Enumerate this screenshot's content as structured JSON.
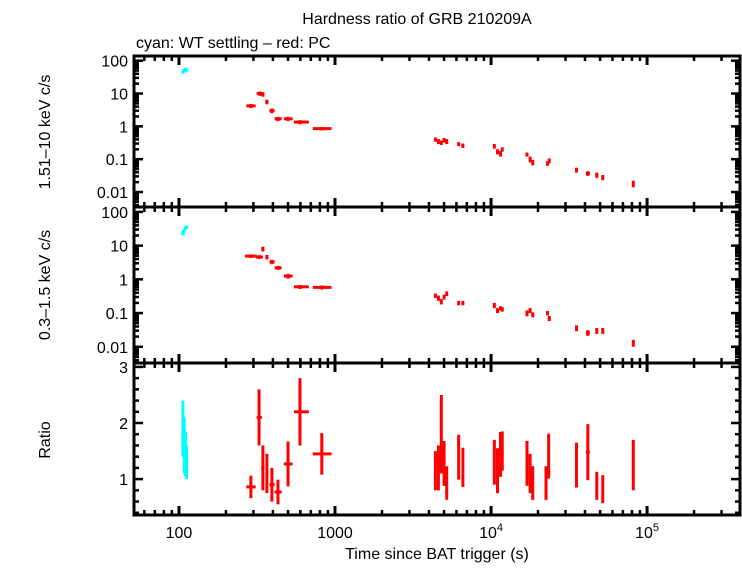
{
  "chart_data": {
    "type": "scatter",
    "title": "Hardness ratio of GRB 210209A",
    "subtitle": "cyan: WT settling – red: PC",
    "xlabel": "Time since BAT trigger (s)",
    "xscale": "log",
    "xlim": [
      51.5,
      394000
    ],
    "xticks": [
      {
        "v": 100,
        "label": "100"
      },
      {
        "v": 1000,
        "label": "1000"
      },
      {
        "v": 10000,
        "label": "10",
        "sup": "4"
      },
      {
        "v": 100000,
        "label": "10",
        "sup": "5"
      }
    ],
    "colors": {
      "wt": "#00ffff",
      "pc": "#ff0000"
    },
    "panels": [
      {
        "id": "hard",
        "ylabel": "1.51–10 keV c/s",
        "yscale": "log",
        "ylim": [
          0.0035,
          139
        ],
        "yticks": [
          {
            "v": 100,
            "label": "100"
          },
          {
            "v": 10,
            "label": "10"
          },
          {
            "v": 1,
            "label": "1"
          },
          {
            "v": 0.1,
            "label": "0.1"
          },
          {
            "v": 0.01,
            "label": "0.01"
          }
        ],
        "wt": [
          [
            106,
            105,
            107,
            46,
            6
          ],
          [
            108,
            107,
            109,
            50,
            6
          ],
          [
            110,
            109,
            111,
            55,
            6
          ],
          [
            112,
            111,
            113,
            52,
            6
          ]
        ],
        "pc": [
          [
            289,
            270,
            310,
            4.2,
            0.6
          ],
          [
            330,
            315,
            345,
            10,
            1.5
          ],
          [
            345,
            337,
            353,
            9.5,
            1.5
          ],
          [
            366,
            358,
            374,
            5.6,
            0.9
          ],
          [
            394,
            380,
            410,
            3.0,
            0.5
          ],
          [
            431,
            410,
            455,
            1.7,
            0.25
          ],
          [
            500,
            470,
            535,
            1.7,
            0.25
          ],
          [
            596,
            545,
            680,
            1.35,
            0.2
          ],
          [
            823,
            720,
            950,
            0.85,
            0.1
          ],
          [
            4400,
            4350,
            4450,
            0.4,
            0.06
          ],
          [
            4600,
            4550,
            4650,
            0.35,
            0.06
          ],
          [
            4800,
            4750,
            4850,
            0.32,
            0.05
          ],
          [
            5000,
            4950,
            5050,
            0.38,
            0.06
          ],
          [
            5200,
            5150,
            5250,
            0.35,
            0.06
          ],
          [
            6200,
            6100,
            6300,
            0.29,
            0.04
          ],
          [
            6600,
            6500,
            6700,
            0.26,
            0.04
          ],
          [
            10500,
            10400,
            10600,
            0.25,
            0.04
          ],
          [
            11000,
            10900,
            11100,
            0.17,
            0.03
          ],
          [
            11500,
            11400,
            11600,
            0.15,
            0.03
          ],
          [
            11800,
            11700,
            11900,
            0.2,
            0.03
          ],
          [
            17000,
            16900,
            17100,
            0.14,
            0.02
          ],
          [
            17800,
            17700,
            17900,
            0.1,
            0.02
          ],
          [
            18500,
            18400,
            18600,
            0.08,
            0.015
          ],
          [
            23000,
            22800,
            23200,
            0.075,
            0.012
          ],
          [
            23600,
            23400,
            23800,
            0.09,
            0.015
          ],
          [
            35300,
            35000,
            35600,
            0.047,
            0.008
          ],
          [
            41700,
            40500,
            43000,
            0.037,
            0.006
          ],
          [
            47600,
            47200,
            48000,
            0.033,
            0.006
          ],
          [
            52000,
            51600,
            52400,
            0.028,
            0.005
          ],
          [
            81600,
            81000,
            82200,
            0.018,
            0.004
          ]
        ]
      },
      {
        "id": "soft",
        "ylabel": "0.3–1.5 keV c/s",
        "yscale": "log",
        "ylim": [
          0.0033,
          140
        ],
        "yticks": [
          {
            "v": 100,
            "label": "100"
          },
          {
            "v": 10,
            "label": "10"
          },
          {
            "v": 1,
            "label": "1"
          },
          {
            "v": 0.1,
            "label": "0.1"
          },
          {
            "v": 0.01,
            "label": "0.01"
          }
        ],
        "wt": [
          [
            106,
            105,
            107,
            24,
            4
          ],
          [
            108,
            107,
            109,
            28,
            4
          ],
          [
            110,
            109,
            111,
            33,
            4
          ],
          [
            112,
            111,
            113,
            36,
            4
          ]
        ],
        "pc": [
          [
            289,
            265,
            315,
            4.9,
            0.6
          ],
          [
            326,
            310,
            345,
            4.6,
            0.6
          ],
          [
            345,
            337,
            353,
            8,
            1.3
          ],
          [
            366,
            358,
            374,
            4.6,
            0.7
          ],
          [
            394,
            380,
            410,
            3.3,
            0.5
          ],
          [
            431,
            410,
            455,
            2.2,
            0.3
          ],
          [
            500,
            470,
            535,
            1.25,
            0.2
          ],
          [
            596,
            545,
            680,
            0.6,
            0.08
          ],
          [
            823,
            720,
            950,
            0.58,
            0.08
          ],
          [
            4400,
            4350,
            4450,
            0.33,
            0.05
          ],
          [
            4600,
            4550,
            4650,
            0.28,
            0.05
          ],
          [
            4800,
            4750,
            4850,
            0.22,
            0.04
          ],
          [
            5000,
            4950,
            5050,
            0.3,
            0.05
          ],
          [
            5200,
            5150,
            5250,
            0.38,
            0.06
          ],
          [
            6200,
            6100,
            6300,
            0.2,
            0.03
          ],
          [
            6600,
            6500,
            6700,
            0.2,
            0.03
          ],
          [
            10500,
            10400,
            10600,
            0.17,
            0.03
          ],
          [
            11000,
            10900,
            11100,
            0.12,
            0.02
          ],
          [
            11500,
            11400,
            11600,
            0.14,
            0.02
          ],
          [
            11800,
            11700,
            11900,
            0.13,
            0.02
          ],
          [
            17000,
            16900,
            17100,
            0.1,
            0.02
          ],
          [
            17800,
            17700,
            17900,
            0.12,
            0.02
          ],
          [
            18500,
            18400,
            18600,
            0.09,
            0.015
          ],
          [
            23000,
            22800,
            23200,
            0.1,
            0.015
          ],
          [
            23600,
            23400,
            23800,
            0.07,
            0.012
          ],
          [
            35300,
            35000,
            35600,
            0.036,
            0.007
          ],
          [
            41700,
            40500,
            43000,
            0.026,
            0.005
          ],
          [
            47600,
            47200,
            48000,
            0.03,
            0.006
          ],
          [
            52000,
            51600,
            52400,
            0.03,
            0.006
          ],
          [
            81600,
            81000,
            82200,
            0.013,
            0.003
          ]
        ]
      },
      {
        "id": "ratio",
        "ylabel": "Ratio",
        "yscale": "linear",
        "ylim": [
          0.36,
          3.07
        ],
        "yticks": [
          {
            "v": 3,
            "label": "3"
          },
          {
            "v": 2,
            "label": "2"
          },
          {
            "v": 1,
            "label": "1"
          }
        ],
        "wt": [
          [
            106,
            105,
            107,
            1.9,
            0.5
          ],
          [
            108,
            107,
            109,
            1.6,
            0.5
          ],
          [
            110,
            109,
            111,
            1.45,
            0.4
          ],
          [
            112,
            111,
            113,
            1.3,
            0.3
          ]
        ],
        "pc": [
          [
            289,
            270,
            310,
            0.86,
            0.2
          ],
          [
            326,
            315,
            340,
            2.1,
            0.5
          ],
          [
            345,
            337,
            353,
            1.2,
            0.4
          ],
          [
            366,
            358,
            374,
            1.1,
            0.35
          ],
          [
            394,
            380,
            410,
            0.9,
            0.3
          ],
          [
            431,
            410,
            455,
            0.77,
            0.22
          ],
          [
            500,
            470,
            535,
            1.27,
            0.4
          ],
          [
            596,
            545,
            680,
            2.2,
            0.6
          ],
          [
            823,
            720,
            950,
            1.45,
            0.37
          ],
          [
            4400,
            4350,
            4450,
            1.15,
            0.35
          ],
          [
            4600,
            4550,
            4650,
            1.2,
            0.4
          ],
          [
            4800,
            4750,
            4850,
            1.8,
            0.7
          ],
          [
            5000,
            4950,
            5050,
            1.28,
            0.4
          ],
          [
            5200,
            5150,
            5250,
            0.93,
            0.3
          ],
          [
            6200,
            6100,
            6300,
            1.39,
            0.4
          ],
          [
            6600,
            6500,
            6700,
            1.21,
            0.35
          ],
          [
            10500,
            10400,
            10600,
            1.3,
            0.4
          ],
          [
            11000,
            10900,
            11100,
            1.15,
            0.4
          ],
          [
            11500,
            11400,
            11600,
            1.44,
            0.4
          ],
          [
            11800,
            11700,
            11900,
            1.5,
            0.35
          ],
          [
            17000,
            16900,
            17100,
            1.28,
            0.4
          ],
          [
            17800,
            17700,
            17900,
            1.1,
            0.35
          ],
          [
            18500,
            18400,
            18600,
            0.93,
            0.3
          ],
          [
            22500,
            22300,
            22700,
            0.93,
            0.3
          ],
          [
            23400,
            23200,
            23600,
            1.41,
            0.4
          ],
          [
            35300,
            35000,
            35600,
            1.25,
            0.4
          ],
          [
            41700,
            40500,
            43000,
            1.48,
            0.5
          ],
          [
            47600,
            47200,
            48000,
            0.88,
            0.25
          ],
          [
            52000,
            51600,
            52400,
            0.82,
            0.25
          ],
          [
            81600,
            81000,
            82200,
            1.25,
            0.45
          ]
        ]
      }
    ]
  }
}
